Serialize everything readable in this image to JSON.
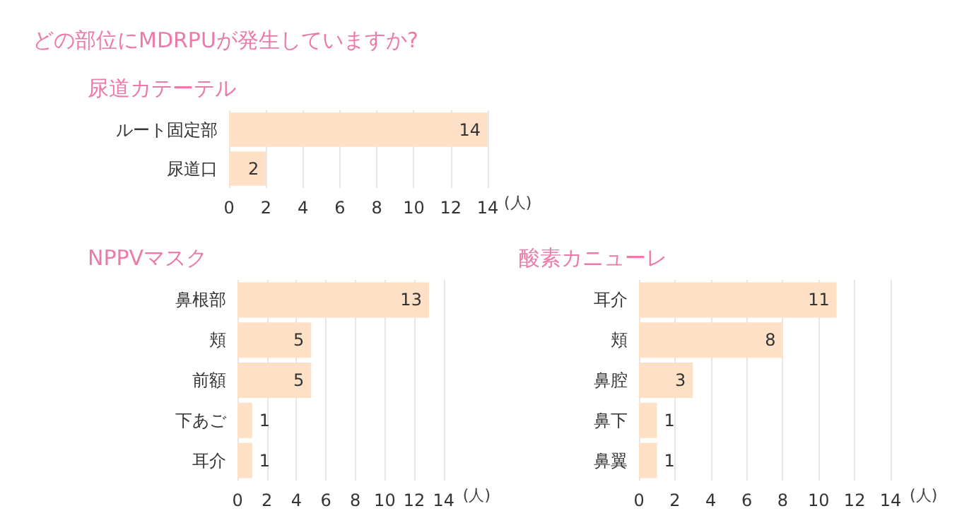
{
  "chart_data": [
    {
      "type": "bar",
      "title": "どの部位にMDRPUが発生していますか?",
      "subtitle": "尿道カテーテル",
      "orientation": "horizontal",
      "categories": [
        "ルート固定部",
        "尿道口"
      ],
      "values": [
        14,
        2
      ],
      "color": "#fde0c5",
      "xlim": [
        0,
        14
      ],
      "xticks": [
        0,
        2,
        4,
        6,
        8,
        10,
        12,
        14
      ],
      "xlabel": "(人)",
      "data_labels": true,
      "grid": "x"
    },
    {
      "type": "bar",
      "title": "NPPVマスク",
      "orientation": "horizontal",
      "categories": [
        "鼻根部",
        "頬",
        "前額",
        "下あご",
        "耳介"
      ],
      "values": [
        13,
        5,
        5,
        1,
        1
      ],
      "color": "#fde0c5",
      "xlim": [
        0,
        14
      ],
      "xticks": [
        0,
        2,
        4,
        6,
        8,
        10,
        12,
        14
      ],
      "xlabel": "(人)",
      "data_labels": true,
      "grid": "x"
    },
    {
      "type": "bar",
      "title": "酸素カニューレ",
      "orientation": "horizontal",
      "categories": [
        "耳介",
        "頬",
        "鼻腔",
        "鼻下",
        "鼻翼"
      ],
      "values": [
        11,
        8,
        3,
        1,
        1
      ],
      "color": "#fde0c5",
      "xlim": [
        0,
        14
      ],
      "xticks": [
        0,
        2,
        4,
        6,
        8,
        10,
        12,
        14
      ],
      "xlabel": "(人)",
      "data_labels": true,
      "grid": "x"
    }
  ]
}
